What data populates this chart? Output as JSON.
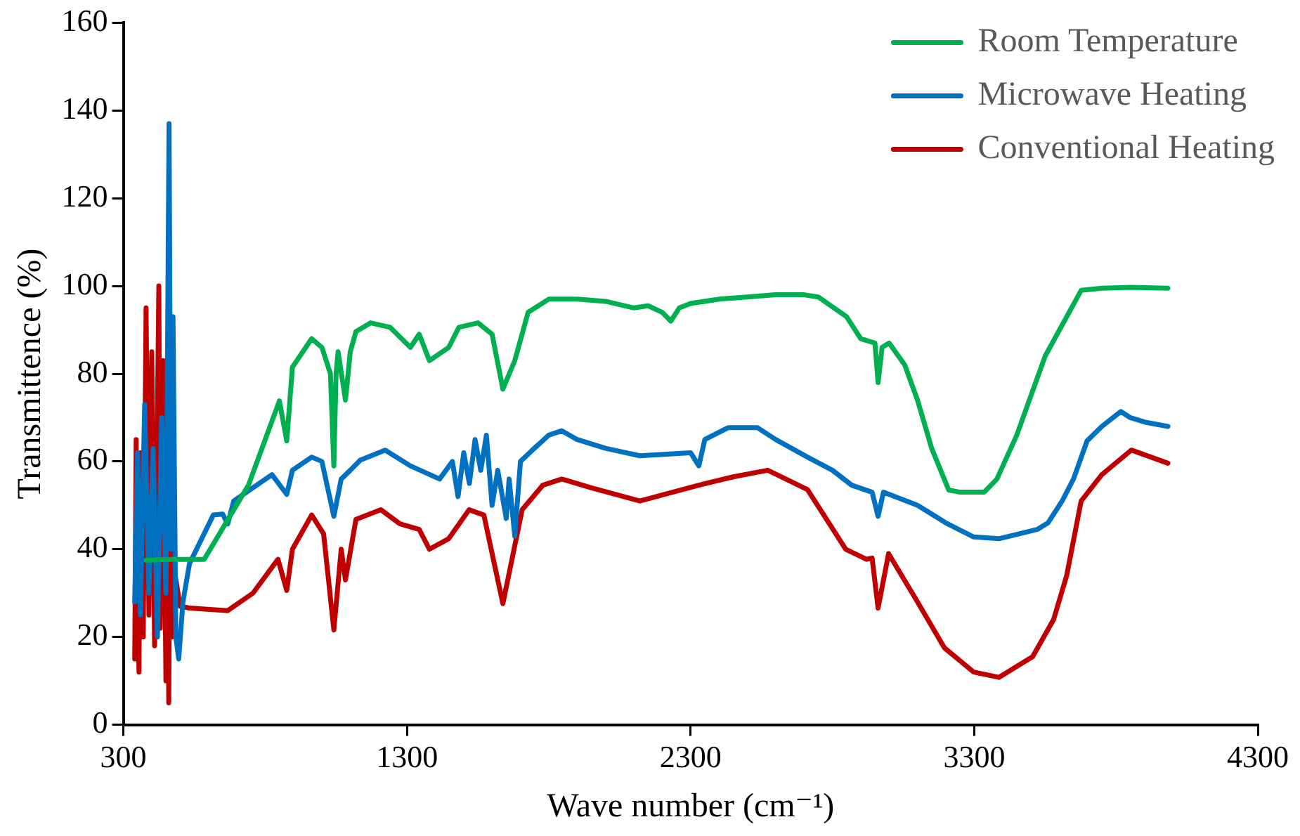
{
  "chart_data": {
    "type": "line",
    "xlabel": "Wave number (cm⁻¹)",
    "ylabel": "Transmittence (%)",
    "xlim": [
      300,
      4300
    ],
    "xticks": [
      300,
      1300,
      2300,
      3300,
      4300
    ],
    "ylim": [
      0,
      160
    ],
    "yticks": [
      0,
      20,
      40,
      60,
      80,
      100,
      120,
      140,
      160
    ],
    "grid": false,
    "legend": "top right",
    "marker": "none",
    "line_style": "solid",
    "series": [
      {
        "name": "Room Temperature",
        "color": "#00b050",
        "x": [
          380,
          460,
          585,
          741,
          850,
          876,
          896,
          964,
          1000,
          1030,
          1042,
          1050,
          1057,
          1083,
          1100,
          1120,
          1172,
          1240,
          1312,
          1343,
          1379,
          1447,
          1483,
          1550,
          1600,
          1638,
          1680,
          1727,
          1800,
          1900,
          2000,
          2100,
          2150,
          2200,
          2230,
          2260,
          2300,
          2400,
          2500,
          2600,
          2700,
          2750,
          2850,
          2900,
          2950,
          2961,
          2975,
          3000,
          3055,
          3100,
          3150,
          3210,
          3250,
          3335,
          3380,
          3450,
          3550,
          3677,
          3750,
          3850,
          3983
        ],
        "values": [
          37.5,
          37.7,
          37.7,
          54.6,
          73.8,
          64.7,
          81.5,
          88,
          86,
          80,
          59,
          80,
          85,
          74,
          85,
          89.6,
          91.6,
          90.6,
          86,
          89,
          83,
          86,
          90.6,
          91.6,
          89,
          76.5,
          83,
          94,
          97,
          97,
          96.5,
          95,
          95.5,
          94,
          92,
          95,
          96,
          97,
          97.5,
          98,
          98,
          97.5,
          93,
          88,
          87,
          78,
          86,
          87,
          82,
          74,
          63,
          53.5,
          53,
          53,
          56,
          66,
          84,
          99,
          99.5,
          99.7,
          99.5
        ]
      },
      {
        "name": "Microwave Heating",
        "color": "#0070c0",
        "x": [
          340,
          350,
          360,
          375,
          390,
          405,
          420,
          435,
          450,
          461,
          468,
          475,
          485,
          495,
          510,
          533,
          617,
          650,
          668,
          689,
          824,
          876,
          896,
          964,
          1000,
          1042,
          1068,
          1100,
          1135,
          1223,
          1312,
          1415,
          1460,
          1480,
          1500,
          1520,
          1540,
          1560,
          1580,
          1600,
          1620,
          1650,
          1660,
          1680,
          1700,
          1742,
          1800,
          1846,
          1900,
          2000,
          2121,
          2300,
          2329,
          2350,
          2432,
          2536,
          2600,
          2712,
          2800,
          2868,
          2940,
          2961,
          2980,
          3100,
          3200,
          3298,
          3387,
          3522,
          3560,
          3610,
          3650,
          3698,
          3750,
          3817,
          3850,
          3900,
          3983
        ],
        "values": [
          28,
          62,
          25,
          73,
          30,
          63,
          20,
          70,
          30,
          137,
          40,
          93,
          20,
          15,
          28,
          36.7,
          47.8,
          48,
          45.8,
          51,
          57,
          52.5,
          58,
          61,
          60,
          47.5,
          56,
          58,
          60.3,
          62.6,
          59,
          56,
          60,
          52,
          62,
          55,
          65,
          58,
          66,
          50,
          58,
          47,
          56,
          43,
          60,
          62.6,
          66,
          67,
          65,
          63,
          61.3,
          62,
          59,
          65,
          67.7,
          67.7,
          65,
          61,
          58,
          54.6,
          53,
          47.5,
          53,
          50,
          46,
          42.8,
          42.4,
          44.5,
          46,
          51,
          56,
          64.7,
          68,
          71.4,
          70,
          69,
          68
        ]
      },
      {
        "name": "Conventional Heating",
        "color": "#c00000",
        "x": [
          340,
          345,
          350,
          355,
          360,
          370,
          380,
          390,
          400,
          410,
          420,
          425,
          430,
          440,
          450,
          455,
          460,
          465,
          470,
          480,
          500,
          533,
          668,
          757,
          845,
          876,
          896,
          964,
          1006,
          1042,
          1068,
          1083,
          1120,
          1208,
          1275,
          1343,
          1379,
          1447,
          1519,
          1571,
          1638,
          1706,
          1779,
          1846,
          1950,
          2121,
          2329,
          2450,
          2572,
          2712,
          2847,
          2920,
          2940,
          2961,
          2998,
          3100,
          3195,
          3298,
          3387,
          3506,
          3580,
          3626,
          3677,
          3750,
          3854,
          3983
        ],
        "values": [
          15,
          65,
          30,
          12,
          62,
          20,
          95,
          25,
          85,
          18,
          70,
          100,
          22,
          83,
          10,
          80,
          5,
          75,
          20,
          35,
          27,
          26.6,
          26,
          30,
          37.7,
          30.6,
          40,
          47.8,
          43.5,
          21.6,
          40,
          33,
          46.8,
          49,
          45.8,
          44.5,
          40,
          42.4,
          49,
          47.8,
          27.6,
          49,
          54.6,
          56,
          54,
          51,
          54.6,
          56.5,
          58,
          53.6,
          40,
          37.7,
          38,
          26.6,
          39,
          28,
          17.5,
          12,
          10.8,
          15.5,
          24,
          34,
          51,
          57,
          62.6,
          59.6
        ]
      }
    ]
  }
}
